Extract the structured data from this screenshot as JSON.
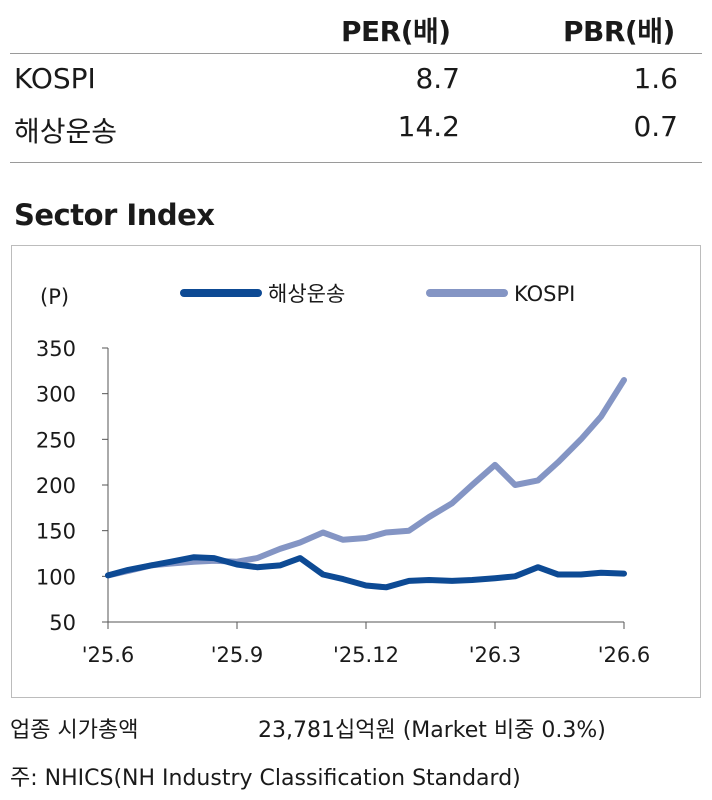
{
  "valuation": {
    "headers": [
      "PER(배)",
      "PBR(배)"
    ],
    "rows": [
      {
        "label": "KOSPI",
        "per": "8.7",
        "pbr": "1.6"
      },
      {
        "label": "해상운송",
        "per": "14.2",
        "pbr": "0.7"
      }
    ]
  },
  "section_title": "Sector Index",
  "chart_data": {
    "type": "line",
    "unit_label": "(P)",
    "ylim": [
      50,
      350
    ],
    "yticks": [
      "350",
      "300",
      "250",
      "200",
      "150",
      "100",
      "50"
    ],
    "x_range": [
      "2025-06",
      "2026-06"
    ],
    "xticks": [
      "'25.6",
      "'25.9",
      "'25.12",
      "'26.3",
      "'26.6"
    ],
    "legend_position": "top",
    "grid": false,
    "series": [
      {
        "name": "해상운송",
        "color": "#0d4a94",
        "x": [
          "2025-06",
          "2025-06-15",
          "2025-07",
          "2025-07-15",
          "2025-08",
          "2025-08-15",
          "2025-09",
          "2025-09-15",
          "2025-10",
          "2025-10-15",
          "2025-11",
          "2025-11-15",
          "2025-12",
          "2025-12-15",
          "2026-01",
          "2026-01-15",
          "2026-02",
          "2026-02-15",
          "2026-03",
          "2026-03-15",
          "2026-04",
          "2026-04-15",
          "2026-05",
          "2026-05-15",
          "2026-06"
        ],
        "values": [
          101,
          107,
          112,
          116,
          121,
          120,
          113,
          110,
          112,
          120,
          102,
          97,
          90,
          88,
          95,
          96,
          95,
          96,
          98,
          100,
          110,
          102,
          102,
          104,
          103
        ]
      },
      {
        "name": "KOSPI",
        "color": "#8495c4",
        "x": [
          "2025-06",
          "2025-06-15",
          "2025-07",
          "2025-07-15",
          "2025-08",
          "2025-08-15",
          "2025-09",
          "2025-09-15",
          "2025-10",
          "2025-10-15",
          "2025-11",
          "2025-11-15",
          "2025-12",
          "2025-12-15",
          "2026-01",
          "2026-01-15",
          "2026-02",
          "2026-02-15",
          "2026-03",
          "2026-03-15",
          "2026-04",
          "2026-04-15",
          "2026-05",
          "2026-05-15",
          "2026-06"
        ],
        "values": [
          101,
          106,
          112,
          114,
          116,
          117,
          116,
          120,
          130,
          137,
          148,
          140,
          142,
          148,
          150,
          165,
          180,
          200,
          222,
          200,
          205,
          225,
          250,
          275,
          315
        ]
      }
    ]
  },
  "footer": {
    "market_cap_label": "업종 시가총액",
    "market_cap_value": "23,781십억원 (Market 비중 0.3%)",
    "note": "주: NHICS(NH Industry Classification Standard)"
  }
}
